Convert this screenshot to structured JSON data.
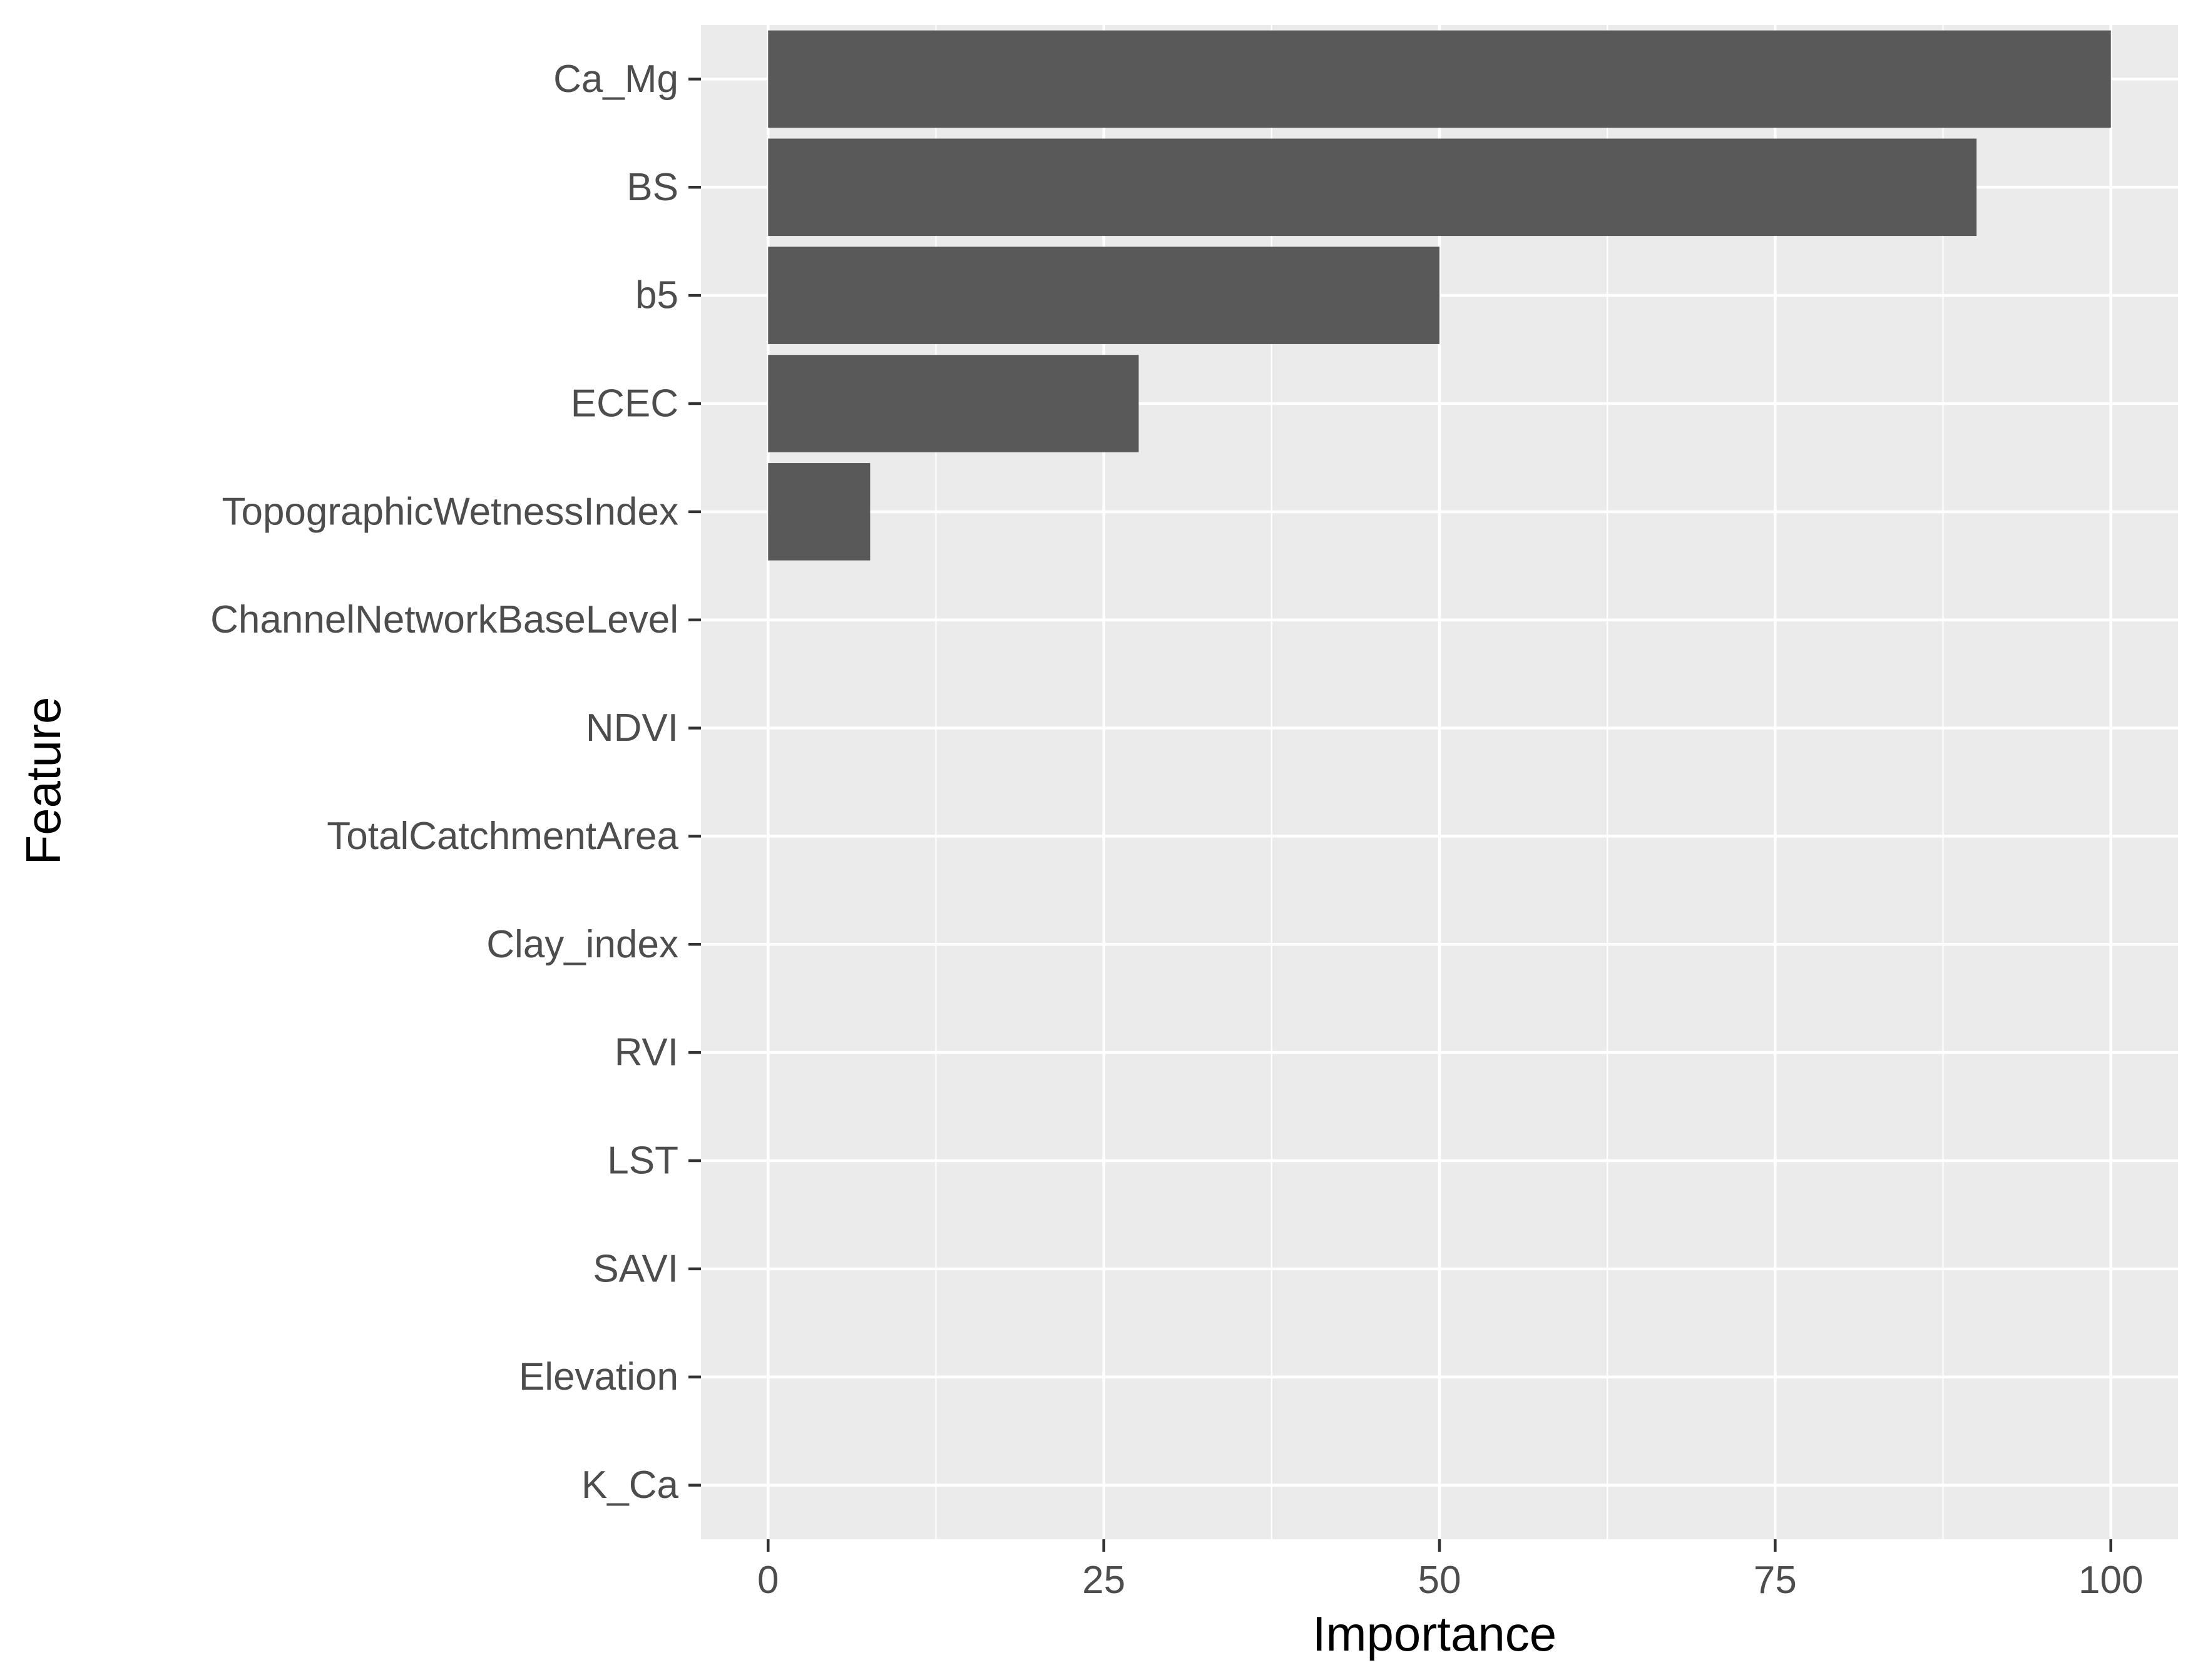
{
  "chart_data": {
    "type": "bar",
    "orientation": "horizontal",
    "title": "",
    "xlabel": "Importance",
    "ylabel": "Feature",
    "categories": [
      "Ca_Mg",
      "BS",
      "b5",
      "ECEC",
      "TopographicWetnessIndex",
      "ChannelNetworkBaseLevel",
      "NDVI",
      "TotalCatchmentArea",
      "Clay_index",
      "RVI",
      "LST",
      "SAVI",
      "Elevation",
      "K_Ca"
    ],
    "values": [
      100,
      90,
      50,
      27.6,
      7.6,
      0,
      0,
      0,
      0,
      0,
      0,
      0,
      0,
      0
    ],
    "xlim": [
      -5,
      105
    ],
    "xticks": [
      0,
      25,
      50,
      75,
      100
    ],
    "xtick_labels": [
      "0",
      "25",
      "50",
      "75",
      "100"
    ],
    "grid": true,
    "legend": "none",
    "colors": {
      "panel_background": "#ebebeb",
      "grid_major": "#ffffff",
      "bar_fill": "#595959",
      "axis_text": "#4d4d4d",
      "axis_title": "#000000",
      "tick": "#333333"
    }
  }
}
